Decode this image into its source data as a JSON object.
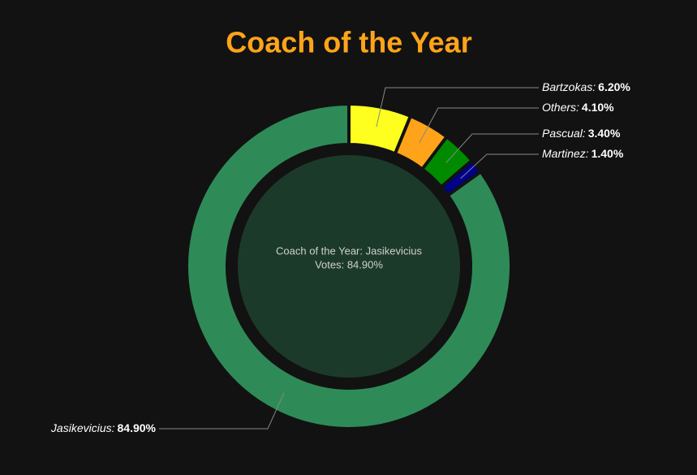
{
  "chart_data": {
    "type": "donut",
    "title": "Coach of the Year",
    "categories": [
      "Bartzokas:",
      "Others:",
      "Pascual:",
      "Martinez:",
      "Jasikevicius:"
    ],
    "values": [
      6.2,
      4.1,
      3.4,
      1.4,
      84.9
    ],
    "value_labels": [
      "6.20%",
      "4.10%",
      "3.40%",
      "1.40%",
      "84.90%"
    ],
    "colors": [
      "#ffff1f",
      "#ffa41a",
      "#008a00",
      "#00008a",
      "#2e8b57"
    ],
    "center_label": [
      "Coach of the Year: Jasikevicius",
      "Votes: 84.90%"
    ]
  }
}
